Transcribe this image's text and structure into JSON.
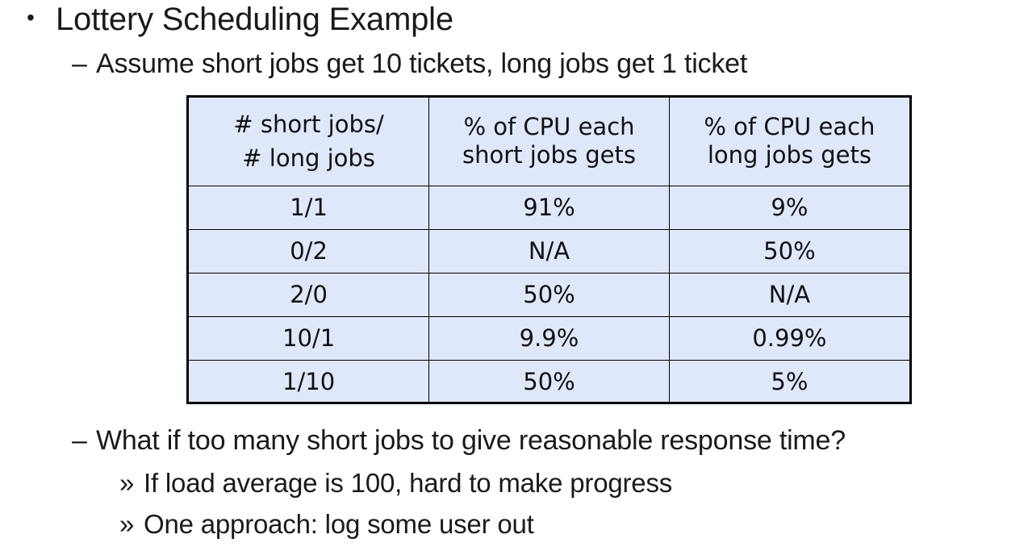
{
  "bullets": {
    "main": {
      "marker": "•",
      "text": "Lottery Scheduling Example"
    },
    "sub1": {
      "marker": "–",
      "text": "Assume short jobs get 10 tickets, long jobs get 1 ticket"
    },
    "sub2": {
      "marker": "–",
      "text": "What if too many short jobs to give reasonable response time?"
    },
    "sub2_items": [
      {
        "marker": "»",
        "text": "If load average is 100, hard to make progress"
      },
      {
        "marker": "»",
        "text": "One approach: log some user out"
      }
    ]
  },
  "table": {
    "headers": [
      {
        "line1": "# short jobs/",
        "line2": "# long jobs"
      },
      {
        "line1": "% of CPU each",
        "line2": "short jobs gets"
      },
      {
        "line1": "% of CPU each",
        "line2": "long jobs gets"
      }
    ],
    "rows": [
      [
        "1/1",
        "91%",
        "9%"
      ],
      [
        "0/2",
        "N/A",
        "50%"
      ],
      [
        "2/0",
        "50%",
        "N/A"
      ],
      [
        "10/1",
        "9.9%",
        "0.99%"
      ],
      [
        "1/10",
        "50%",
        "5%"
      ]
    ]
  },
  "colors": {
    "table_fill": "#dfe8fb",
    "table_border": "#000000",
    "text": "#1a1a1a"
  }
}
